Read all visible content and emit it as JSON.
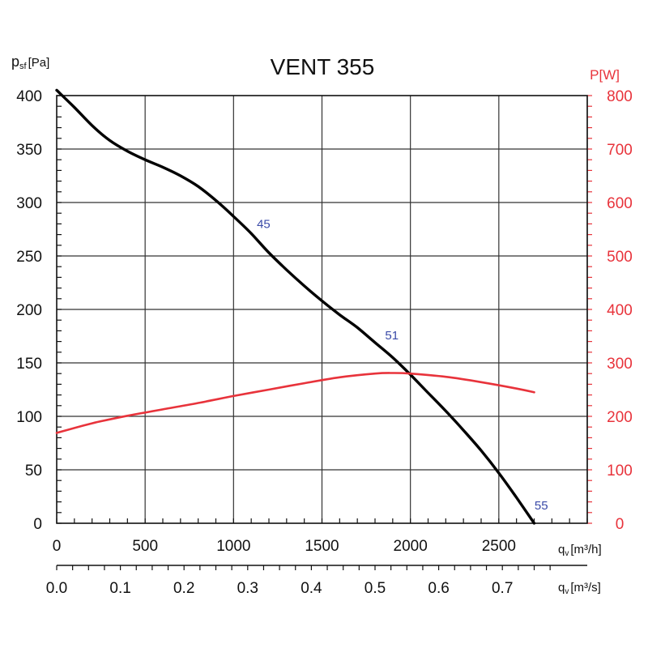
{
  "chart_data": {
    "type": "line",
    "title": "VENT 355",
    "ylabel_left": "p",
    "ylabel_left_sub": "sf",
    "ylabel_left_unit": "[Pa]",
    "ylabel_right": "P[W]",
    "xlabel_primary": "q",
    "xlabel_primary_sub": "v",
    "xlabel_primary_unit": "[m³/h]",
    "xlabel_secondary": "q",
    "xlabel_secondary_sub": "v",
    "xlabel_secondary_unit": "[m³/s]",
    "xlim": [
      0,
      3000
    ],
    "ylim_left": [
      0,
      400
    ],
    "ylim_right": [
      0,
      800
    ],
    "x_ticks": [
      "0",
      "500",
      "1000",
      "1500",
      "2000",
      "2500"
    ],
    "x_tick_values": [
      0,
      500,
      1000,
      1500,
      2000,
      2500
    ],
    "x2_ticks": [
      "0.0",
      "0.1",
      "0.2",
      "0.3",
      "0.4",
      "0.5",
      "0.6",
      "0.7"
    ],
    "x2_tick_values": [
      0.0,
      0.1,
      0.2,
      0.3,
      0.4,
      0.5,
      0.6,
      0.7
    ],
    "y_left_ticks": [
      "0",
      "50",
      "100",
      "150",
      "200",
      "250",
      "300",
      "350",
      "400"
    ],
    "y_left_tick_values": [
      0,
      50,
      100,
      150,
      200,
      250,
      300,
      350,
      400
    ],
    "y_right_ticks": [
      "0",
      "100",
      "200",
      "300",
      "400",
      "500",
      "600",
      "700",
      "800"
    ],
    "y_right_tick_values": [
      0,
      100,
      200,
      300,
      400,
      500,
      600,
      700,
      800
    ],
    "grid": true,
    "series": [
      {
        "axis": "left",
        "color": "#000000",
        "x": [
          0,
          100,
          200,
          300,
          400,
          500,
          600,
          700,
          800,
          900,
          1000,
          1100,
          1200,
          1300,
          1400,
          1500,
          1600,
          1700,
          1800,
          1900,
          2000,
          2100,
          2200,
          2300,
          2400,
          2500,
          2600,
          2700
        ],
        "y": [
          405,
          389,
          372,
          358,
          348,
          340,
          333,
          325,
          315,
          302,
          287,
          271,
          253,
          237,
          222,
          208,
          195,
          183,
          169,
          155,
          139,
          122,
          105,
          87,
          68,
          47,
          24,
          0
        ]
      },
      {
        "axis": "right",
        "color": "#e8333b",
        "x": [
          0,
          200,
          400,
          600,
          800,
          1000,
          1200,
          1400,
          1600,
          1800,
          1900,
          2000,
          2200,
          2400,
          2600,
          2700
        ],
        "y": [
          169,
          187,
          201,
          213,
          225,
          238,
          250,
          262,
          273,
          280,
          281,
          280,
          274,
          264,
          252,
          245
        ]
      }
    ],
    "annotations": [
      {
        "text": "45",
        "x": 1170,
        "y": 276
      },
      {
        "text": "51",
        "x": 1895,
        "y": 172
      },
      {
        "text": "55",
        "x": 2740,
        "y": 13
      }
    ]
  }
}
